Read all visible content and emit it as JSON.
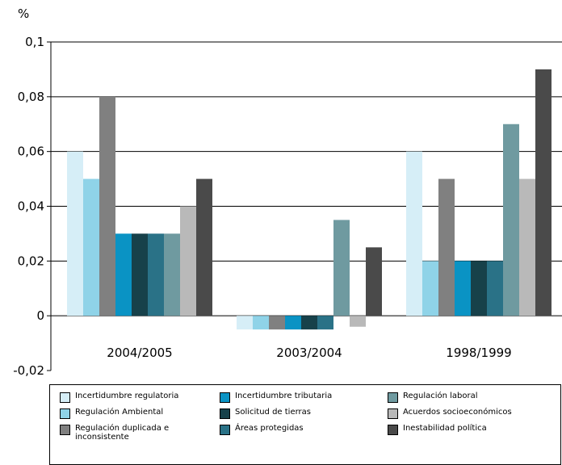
{
  "chart_data": {
    "type": "bar",
    "unit_label": "%",
    "categories": [
      "2004/2005",
      "2003/2004",
      "1998/1999"
    ],
    "ylim": [
      -0.02,
      0.1
    ],
    "yticks": [
      "0,1",
      "0,08",
      "0,06",
      "0,04",
      "0,02",
      "0",
      "-0,02"
    ],
    "ytick_values": [
      0.1,
      0.08,
      0.06,
      0.04,
      0.02,
      0,
      -0.02
    ],
    "grid": true,
    "legend_position": "bottom",
    "series": [
      {
        "name": "Incertidumbre regulatoria",
        "color": "#d6eef7",
        "values": [
          0.06,
          -0.005,
          0.06
        ]
      },
      {
        "name": "Regulación Ambiental",
        "color": "#8fd3e8",
        "values": [
          0.05,
          -0.005,
          0.02
        ]
      },
      {
        "name": "Regulación duplicada e inconsistente",
        "color": "#808080",
        "values": [
          0.08,
          -0.005,
          0.05
        ]
      },
      {
        "name": "Incertidumbre tributaria",
        "color": "#0a93c4",
        "values": [
          0.03,
          -0.005,
          0.02
        ]
      },
      {
        "name": "Solicitud de tierras",
        "color": "#17414a",
        "values": [
          0.03,
          -0.005,
          0.02
        ]
      },
      {
        "name": "Áreas protegidas",
        "color": "#2a7287",
        "values": [
          0.03,
          -0.005,
          0.02
        ]
      },
      {
        "name": "Regulación laboral",
        "color": "#6f9aa0",
        "values": [
          0.03,
          0.035,
          0.07
        ]
      },
      {
        "name": "Acuerdos socioeconómicos",
        "color": "#b9b9b9",
        "values": [
          0.04,
          -0.004,
          0.05
        ]
      },
      {
        "name": "Inestabilidad política",
        "color": "#4a4a4a",
        "values": [
          0.05,
          0.025,
          0.09
        ]
      }
    ]
  }
}
